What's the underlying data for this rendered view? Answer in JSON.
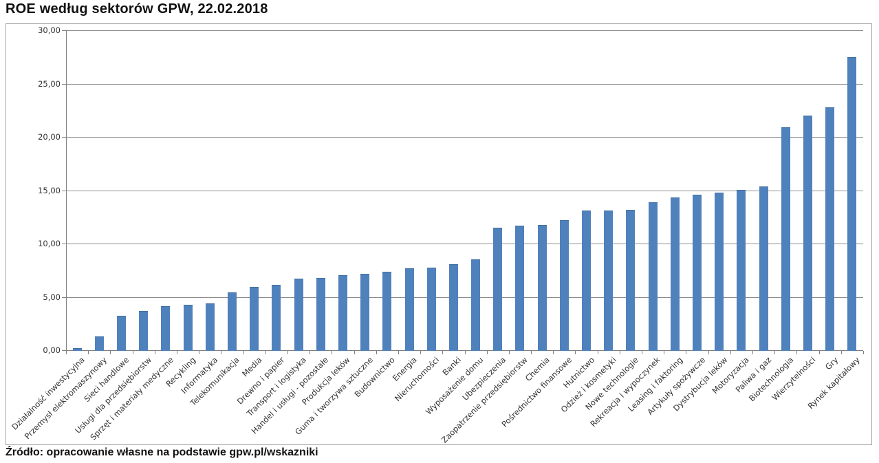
{
  "page": {
    "title": "ROE według sektorów GPW, 22.02.2018",
    "source_note": "Źródło: opracowanie własne na podstawie gpw.pl/wskazniki"
  },
  "colors": {
    "bar": "#4f81bd",
    "bar_edge": "#426f9f",
    "gridline": "#8c8c8c",
    "axis": "#808080",
    "text": "#111111"
  },
  "chart_data": {
    "type": "bar",
    "title": "ROE według sektorów GPW, 22.02.2018",
    "xlabel": "",
    "ylabel": "",
    "ylim": [
      0,
      30
    ],
    "ytick_step": 5,
    "ytick_labels": [
      "0,00",
      "5,00",
      "10,00",
      "15,00",
      "20,00",
      "25,00",
      "30,00"
    ],
    "grid": true,
    "legend": false,
    "categories": [
      "Działalność inwestycyjna",
      "Przemysł elektromaszynowy",
      "Sieci handlowe",
      "Usługi dla przedsiębiorstw",
      "Sprzęt i materiały medyczne",
      "Recykling",
      "Informatyka",
      "Telekomunikacja",
      "Media",
      "Drewno i papier",
      "Transport i logistyka",
      "Handel i usługi - pozostałe",
      "Produkcja leków",
      "Guma i tworzywa sztuczne",
      "Budownictwo",
      "Energia",
      "Nieruchomości",
      "Banki",
      "Wyposażenie domu",
      "Ubezpieczenia",
      "Zaopatrzenie przedsiębiorstw",
      "Chemia",
      "Pośrednictwo finansowe",
      "Hutnictwo",
      "Odzież i kosmetyki",
      "Nowe technologie",
      "Rekreacja i wypoczynek",
      "Leasing i faktoring",
      "Artykuły spożywcze",
      "Dystrybucja leków",
      "Motoryzacja",
      "Paliwa i gaz",
      "Biotechnologia",
      "Wierzytelności",
      "Gry",
      "Rynek kapitałowy"
    ],
    "values": [
      0.2,
      1.3,
      3.2,
      3.7,
      4.1,
      4.25,
      4.4,
      5.45,
      5.95,
      6.15,
      6.7,
      6.8,
      7.0,
      7.15,
      7.35,
      7.7,
      7.75,
      8.05,
      8.5,
      11.5,
      11.65,
      11.75,
      12.2,
      13.1,
      13.1,
      13.15,
      13.9,
      14.3,
      14.6,
      14.75,
      15.0,
      15.35,
      20.9,
      22.0,
      22.75,
      27.5
    ]
  }
}
